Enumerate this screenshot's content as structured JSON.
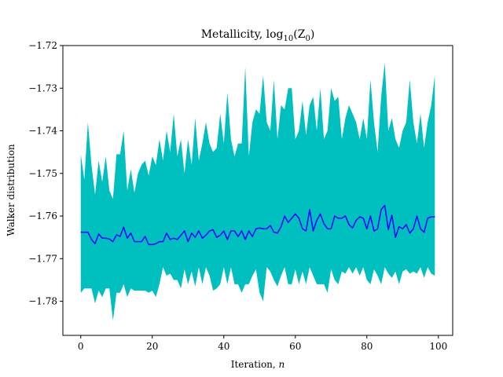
{
  "chart_data": {
    "type": "line",
    "title": "Metallicity, log",
    "title_sub": "10",
    "title_tail": "(Z",
    "title_tail_sub": "0",
    "title_end": ")",
    "xlabel": "Iteration, ",
    "xlabel_var": "n",
    "ylabel": "Walker distribution",
    "xlim": [
      -5,
      104
    ],
    "ylim": [
      -1.788,
      -1.72
    ],
    "xticks": [
      0,
      20,
      40,
      60,
      80,
      100
    ],
    "xtick_labels": [
      "0",
      "20",
      "40",
      "60",
      "80",
      "100"
    ],
    "yticks": [
      -1.78,
      -1.77,
      -1.76,
      -1.75,
      -1.74,
      -1.73,
      -1.72
    ],
    "ytick_labels": [
      "−1.78",
      "−1.77",
      "−1.76",
      "−1.75",
      "−1.74",
      "−1.73",
      "−1.72"
    ],
    "band_color": "#00bfbf",
    "line_color": "#0000ff",
    "x": [
      0,
      1,
      2,
      3,
      4,
      5,
      6,
      7,
      8,
      9,
      10,
      11,
      12,
      13,
      14,
      15,
      16,
      17,
      18,
      19,
      20,
      21,
      22,
      23,
      24,
      25,
      26,
      27,
      28,
      29,
      30,
      31,
      32,
      33,
      34,
      35,
      36,
      37,
      38,
      39,
      40,
      41,
      42,
      43,
      44,
      45,
      46,
      47,
      48,
      49,
      50,
      51,
      52,
      53,
      54,
      55,
      56,
      57,
      58,
      59,
      60,
      61,
      62,
      63,
      64,
      65,
      66,
      67,
      68,
      69,
      70,
      71,
      72,
      73,
      74,
      75,
      76,
      77,
      78,
      79,
      80,
      81,
      82,
      83,
      84,
      85,
      86,
      87,
      88,
      89,
      90,
      91,
      92,
      93,
      94,
      95,
      96,
      97,
      98,
      99
    ],
    "series": [
      {
        "role": "median",
        "values": [
          -1.7638,
          -1.7638,
          -1.7638,
          -1.7655,
          -1.7665,
          -1.7642,
          -1.7652,
          -1.7652,
          -1.7654,
          -1.766,
          -1.7644,
          -1.7648,
          -1.7626,
          -1.7652,
          -1.764,
          -1.766,
          -1.766,
          -1.766,
          -1.7648,
          -1.7667,
          -1.7667,
          -1.7665,
          -1.766,
          -1.766,
          -1.764,
          -1.7655,
          -1.7652,
          -1.7655,
          -1.7645,
          -1.7635,
          -1.766,
          -1.764,
          -1.765,
          -1.7635,
          -1.7652,
          -1.7645,
          -1.7635,
          -1.7632,
          -1.765,
          -1.7645,
          -1.7635,
          -1.7655,
          -1.7635,
          -1.7635,
          -1.7648,
          -1.7635,
          -1.7655,
          -1.7635,
          -1.7648,
          -1.763,
          -1.7628,
          -1.763,
          -1.763,
          -1.7622,
          -1.7638,
          -1.764,
          -1.7625,
          -1.76,
          -1.7615,
          -1.7605,
          -1.7595,
          -1.7605,
          -1.763,
          -1.7635,
          -1.7585,
          -1.7635,
          -1.761,
          -1.7595,
          -1.7618,
          -1.763,
          -1.763,
          -1.76,
          -1.7605,
          -1.7605,
          -1.76,
          -1.762,
          -1.7628,
          -1.761,
          -1.7602,
          -1.7605,
          -1.763,
          -1.76,
          -1.7635,
          -1.763,
          -1.7585,
          -1.7575,
          -1.7632,
          -1.7598,
          -1.765,
          -1.7625,
          -1.763,
          -1.762,
          -1.764,
          -1.763,
          -1.76,
          -1.763,
          -1.7638,
          -1.7605,
          -1.7602,
          -1.7602
        ]
      },
      {
        "role": "upper",
        "values": [
          -1.7455,
          -1.7515,
          -1.738,
          -1.748,
          -1.755,
          -1.747,
          -1.752,
          -1.746,
          -1.754,
          -1.756,
          -1.7455,
          -1.7455,
          -1.74,
          -1.754,
          -1.749,
          -1.7545,
          -1.75,
          -1.748,
          -1.747,
          -1.7505,
          -1.746,
          -1.748,
          -1.742,
          -1.747,
          -1.74,
          -1.745,
          -1.736,
          -1.746,
          -1.742,
          -1.75,
          -1.742,
          -1.748,
          -1.737,
          -1.747,
          -1.743,
          -1.738,
          -1.743,
          -1.745,
          -1.744,
          -1.736,
          -1.743,
          -1.731,
          -1.742,
          -1.746,
          -1.743,
          -1.743,
          -1.725,
          -1.746,
          -1.738,
          -1.735,
          -1.736,
          -1.727,
          -1.738,
          -1.74,
          -1.728,
          -1.742,
          -1.734,
          -1.735,
          -1.73,
          -1.73,
          -1.742,
          -1.74,
          -1.733,
          -1.741,
          -1.734,
          -1.732,
          -1.74,
          -1.73,
          -1.742,
          -1.74,
          -1.73,
          -1.733,
          -1.732,
          -1.742,
          -1.737,
          -1.734,
          -1.736,
          -1.738,
          -1.742,
          -1.737,
          -1.742,
          -1.728,
          -1.738,
          -1.745,
          -1.732,
          -1.724,
          -1.74,
          -1.737,
          -1.742,
          -1.744,
          -1.74,
          -1.738,
          -1.728,
          -1.738,
          -1.743,
          -1.736,
          -1.744,
          -1.738,
          -1.734,
          -1.727
        ]
      },
      {
        "role": "lower",
        "values": [
          -1.778,
          -1.777,
          -1.777,
          -1.777,
          -1.7805,
          -1.7775,
          -1.779,
          -1.777,
          -1.777,
          -1.7845,
          -1.778,
          -1.778,
          -1.776,
          -1.779,
          -1.777,
          -1.7775,
          -1.7775,
          -1.7775,
          -1.7775,
          -1.778,
          -1.7775,
          -1.779,
          -1.776,
          -1.772,
          -1.774,
          -1.7735,
          -1.775,
          -1.775,
          -1.777,
          -1.7725,
          -1.776,
          -1.773,
          -1.7765,
          -1.772,
          -1.776,
          -1.772,
          -1.774,
          -1.7775,
          -1.777,
          -1.776,
          -1.772,
          -1.776,
          -1.772,
          -1.776,
          -1.776,
          -1.778,
          -1.776,
          -1.776,
          -1.774,
          -1.7725,
          -1.778,
          -1.78,
          -1.772,
          -1.773,
          -1.775,
          -1.7765,
          -1.774,
          -1.772,
          -1.776,
          -1.776,
          -1.7725,
          -1.776,
          -1.773,
          -1.776,
          -1.772,
          -1.774,
          -1.776,
          -1.776,
          -1.776,
          -1.778,
          -1.7725,
          -1.775,
          -1.776,
          -1.773,
          -1.7735,
          -1.772,
          -1.7735,
          -1.772,
          -1.774,
          -1.772,
          -1.775,
          -1.776,
          -1.7725,
          -1.774,
          -1.776,
          -1.772,
          -1.7735,
          -1.7745,
          -1.773,
          -1.776,
          -1.773,
          -1.7725,
          -1.7735,
          -1.773,
          -1.7735,
          -1.772,
          -1.7745,
          -1.772,
          -1.7735,
          -1.774
        ]
      }
    ],
    "grid": false,
    "legend": "none"
  }
}
